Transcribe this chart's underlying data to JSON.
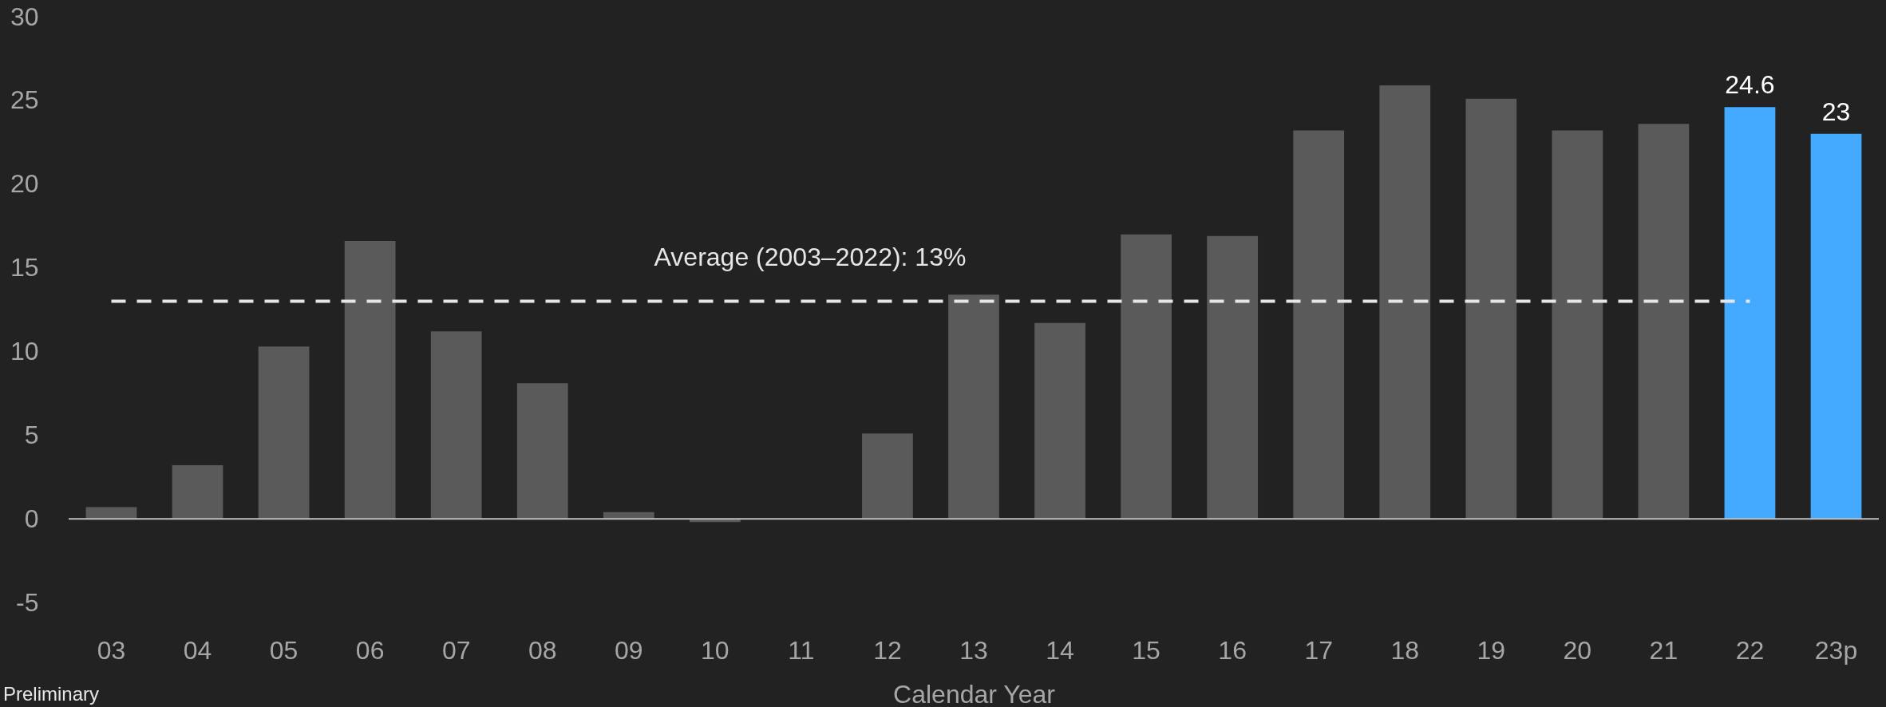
{
  "chart_data": {
    "type": "bar",
    "xlabel": "Calendar Year",
    "categories": [
      "03",
      "04",
      "05",
      "06",
      "07",
      "08",
      "09",
      "10",
      "11",
      "12",
      "13",
      "14",
      "15",
      "16",
      "17",
      "18",
      "19",
      "20",
      "21",
      "22",
      "23p"
    ],
    "values": [
      0.7,
      3.2,
      10.3,
      16.6,
      11.2,
      8.1,
      0.4,
      -0.2,
      0,
      5.1,
      13.4,
      11.7,
      17.0,
      16.9,
      23.2,
      25.9,
      25.1,
      23.2,
      23.6,
      24.6,
      23
    ],
    "colors": [
      "#5a5a5a",
      "#5a5a5a",
      "#5a5a5a",
      "#5a5a5a",
      "#5a5a5a",
      "#5a5a5a",
      "#5a5a5a",
      "#5a5a5a",
      "#5a5a5a",
      "#5a5a5a",
      "#5a5a5a",
      "#5a5a5a",
      "#5a5a5a",
      "#5a5a5a",
      "#5a5a5a",
      "#5a5a5a",
      "#5a5a5a",
      "#5a5a5a",
      "#5a5a5a",
      "#44aaff",
      "#44aaff"
    ],
    "value_labels": [
      null,
      null,
      null,
      null,
      null,
      null,
      null,
      null,
      null,
      null,
      null,
      null,
      null,
      null,
      null,
      null,
      null,
      null,
      null,
      "24.6",
      "23"
    ],
    "ylim": [
      -5,
      30
    ],
    "yticks": [
      -5,
      0,
      5,
      10,
      15,
      20,
      25,
      30
    ],
    "ref_lines": [
      {
        "axis": "y",
        "value": 13,
        "label": "Average (2003–2022): 13%",
        "color": "#e6e6e6",
        "line_style": "dashed"
      }
    ],
    "annotations": [
      "Preliminary"
    ]
  }
}
